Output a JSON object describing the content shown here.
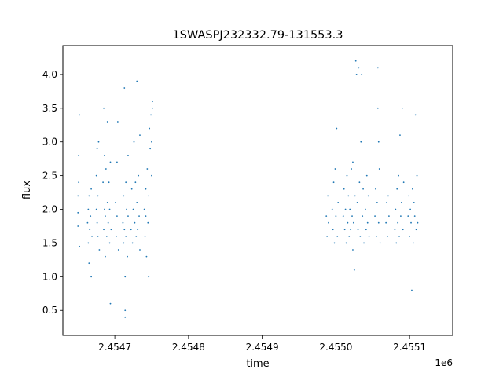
{
  "chart_data": {
    "type": "scatter",
    "title": "1SWASPJ232332.79-131553.3",
    "xlabel": "time",
    "ylabel": "flux",
    "x_offset_label": "1e6",
    "xlim": [
      2454629.5,
      2455158.5
    ],
    "ylim": [
      0.13,
      4.43
    ],
    "x_ticks": [
      {
        "value": 2454700,
        "label": "2.4547"
      },
      {
        "value": 2454800,
        "label": "2.4548"
      },
      {
        "value": 2454900,
        "label": "2.4549"
      },
      {
        "value": 2455000,
        "label": "2.4550"
      },
      {
        "value": 2455100,
        "label": "2.4551"
      }
    ],
    "y_ticks": [
      {
        "value": 0.5,
        "label": "0.5"
      },
      {
        "value": 1.0,
        "label": "1.0"
      },
      {
        "value": 1.5,
        "label": "1.5"
      },
      {
        "value": 2.0,
        "label": "2.0"
      },
      {
        "value": 2.5,
        "label": "2.5"
      },
      {
        "value": 3.0,
        "label": "3.0"
      },
      {
        "value": 3.5,
        "label": "3.5"
      },
      {
        "value": 4.0,
        "label": "4.0"
      }
    ],
    "grid": false,
    "marker_color": "#1f77b4",
    "series": [
      {
        "points": [
          [
            2454650,
            1.95
          ],
          [
            2454650,
            2.2
          ],
          [
            2454650,
            1.75
          ],
          [
            2454651,
            2.4
          ],
          [
            2454651,
            2.8
          ],
          [
            2454652,
            3.4
          ],
          [
            2454652,
            1.45
          ],
          [
            2454663,
            1.8
          ],
          [
            2454664,
            2.0
          ],
          [
            2454664,
            1.5
          ],
          [
            2454665,
            1.2
          ],
          [
            2454665,
            2.2
          ],
          [
            2454666,
            1.7
          ],
          [
            2454667,
            1.9
          ],
          [
            2454668,
            2.3
          ],
          [
            2454668,
            1.0
          ],
          [
            2454669,
            1.6
          ],
          [
            2454675,
            2.0
          ],
          [
            2454675,
            2.5
          ],
          [
            2454676,
            1.8
          ],
          [
            2454676,
            2.9
          ],
          [
            2454677,
            1.6
          ],
          [
            2454677,
            2.2
          ],
          [
            2454678,
            3.0
          ],
          [
            2454679,
            1.4
          ],
          [
            2454684,
            2.4
          ],
          [
            2454685,
            1.7
          ],
          [
            2454685,
            3.5
          ],
          [
            2454686,
            2.0
          ],
          [
            2454686,
            2.8
          ],
          [
            2454687,
            1.9
          ],
          [
            2454687,
            1.3
          ],
          [
            2454688,
            2.6
          ],
          [
            2454689,
            1.6
          ],
          [
            2454690,
            3.3
          ],
          [
            2454690,
            2.1
          ],
          [
            2454691,
            1.8
          ],
          [
            2454692,
            2.4
          ],
          [
            2454693,
            1.5
          ],
          [
            2454693,
            2.0
          ],
          [
            2454694,
            0.6
          ],
          [
            2454694,
            2.7
          ],
          [
            2454695,
            1.7
          ],
          [
            2454701,
            2.1
          ],
          [
            2454702,
            1.6
          ],
          [
            2454703,
            2.7
          ],
          [
            2454703,
            1.9
          ],
          [
            2454704,
            3.3
          ],
          [
            2454705,
            1.4
          ],
          [
            2454711,
            1.8
          ],
          [
            2454712,
            1.5
          ],
          [
            2454712,
            2.2
          ],
          [
            2454713,
            3.8
          ],
          [
            2454713,
            1.7
          ],
          [
            2454714,
            0.5
          ],
          [
            2454714,
            0.4
          ],
          [
            2454714,
            1.0
          ],
          [
            2454715,
            2.4
          ],
          [
            2454715,
            1.6
          ],
          [
            2454716,
            2.0
          ],
          [
            2454717,
            1.3
          ],
          [
            2454718,
            2.8
          ],
          [
            2454718,
            1.9
          ],
          [
            2454722,
            1.7
          ],
          [
            2454723,
            2.3
          ],
          [
            2454724,
            1.5
          ],
          [
            2454725,
            2.0
          ],
          [
            2454726,
            3.0
          ],
          [
            2454727,
            1.8
          ],
          [
            2454728,
            2.4
          ],
          [
            2454729,
            1.6
          ],
          [
            2454730,
            2.1
          ],
          [
            2454730,
            3.9
          ],
          [
            2454731,
            1.7
          ],
          [
            2454732,
            2.5
          ],
          [
            2454733,
            1.9
          ],
          [
            2454734,
            3.1
          ],
          [
            2454734,
            1.4
          ],
          [
            2454740,
            2.0
          ],
          [
            2454741,
            1.6
          ],
          [
            2454742,
            2.3
          ],
          [
            2454742,
            1.9
          ],
          [
            2454743,
            1.3
          ],
          [
            2454744,
            2.6
          ],
          [
            2454745,
            1.8
          ],
          [
            2454746,
            2.2
          ],
          [
            2454746,
            1.0
          ],
          [
            2454747,
            3.2
          ],
          [
            2454748,
            2.9
          ],
          [
            2454749,
            3.4
          ],
          [
            2454750,
            3.0
          ],
          [
            2454750,
            2.5
          ],
          [
            2454751,
            3.5
          ],
          [
            2454751,
            3.6
          ],
          [
            2454987,
            1.9
          ],
          [
            2454988,
            1.6
          ],
          [
            2454989,
            2.2
          ],
          [
            2454990,
            1.8
          ],
          [
            2454995,
            2.0
          ],
          [
            2454996,
            1.7
          ],
          [
            2454997,
            2.4
          ],
          [
            2454998,
            1.5
          ],
          [
            2454999,
            2.6
          ],
          [
            2455000,
            1.9
          ],
          [
            2455001,
            3.2
          ],
          [
            2455002,
            1.6
          ],
          [
            2455003,
            2.1
          ],
          [
            2455010,
            1.9
          ],
          [
            2455011,
            2.3
          ],
          [
            2455012,
            1.7
          ],
          [
            2455013,
            2.0
          ],
          [
            2455014,
            1.5
          ],
          [
            2455015,
            2.5
          ],
          [
            2455016,
            1.8
          ],
          [
            2455017,
            2.2
          ],
          [
            2455018,
            1.6
          ],
          [
            2455019,
            2.0
          ],
          [
            2455020,
            1.7
          ],
          [
            2455021,
            2.6
          ],
          [
            2455022,
            1.9
          ],
          [
            2455023,
            1.4
          ],
          [
            2455023,
            2.7
          ],
          [
            2455024,
            1.8
          ],
          [
            2455025,
            1.1
          ],
          [
            2455026,
            2.2
          ],
          [
            2455027,
            4.2
          ],
          [
            2455028,
            4.0
          ],
          [
            2455029,
            2.1
          ],
          [
            2455030,
            1.7
          ],
          [
            2455031,
            4.1
          ],
          [
            2455032,
            2.4
          ],
          [
            2455033,
            1.6
          ],
          [
            2455034,
            3.0
          ],
          [
            2455035,
            4.0
          ],
          [
            2455036,
            1.9
          ],
          [
            2455037,
            2.3
          ],
          [
            2455038,
            1.5
          ],
          [
            2455040,
            2.0
          ],
          [
            2455041,
            1.7
          ],
          [
            2455042,
            2.5
          ],
          [
            2455043,
            1.8
          ],
          [
            2455044,
            2.2
          ],
          [
            2455045,
            1.6
          ],
          [
            2455053,
            1.9
          ],
          [
            2455054,
            2.3
          ],
          [
            2455055,
            1.6
          ],
          [
            2455056,
            2.1
          ],
          [
            2455057,
            4.1
          ],
          [
            2455057,
            3.5
          ],
          [
            2455058,
            3.0
          ],
          [
            2455058,
            1.8
          ],
          [
            2455059,
            2.6
          ],
          [
            2455060,
            1.5
          ],
          [
            2455068,
            1.8
          ],
          [
            2455069,
            2.1
          ],
          [
            2455070,
            1.6
          ],
          [
            2455071,
            2.2
          ],
          [
            2455072,
            1.9
          ],
          [
            2455080,
            1.7
          ],
          [
            2455081,
            2.0
          ],
          [
            2455082,
            1.5
          ],
          [
            2455083,
            2.3
          ],
          [
            2455084,
            1.8
          ],
          [
            2455085,
            2.5
          ],
          [
            2455086,
            1.6
          ],
          [
            2455087,
            3.1
          ],
          [
            2455088,
            1.9
          ],
          [
            2455089,
            2.1
          ],
          [
            2455090,
            3.5
          ],
          [
            2455091,
            1.7
          ],
          [
            2455092,
            2.4
          ],
          [
            2455098,
            1.9
          ],
          [
            2455099,
            2.2
          ],
          [
            2455100,
            1.6
          ],
          [
            2455101,
            2.0
          ],
          [
            2455102,
            1.8
          ],
          [
            2455103,
            0.8
          ],
          [
            2455104,
            2.3
          ],
          [
            2455105,
            1.5
          ],
          [
            2455106,
            2.1
          ],
          [
            2455107,
            1.9
          ],
          [
            2455108,
            3.4
          ],
          [
            2455109,
            1.7
          ],
          [
            2455110,
            2.5
          ],
          [
            2455111,
            1.8
          ]
        ]
      }
    ]
  }
}
